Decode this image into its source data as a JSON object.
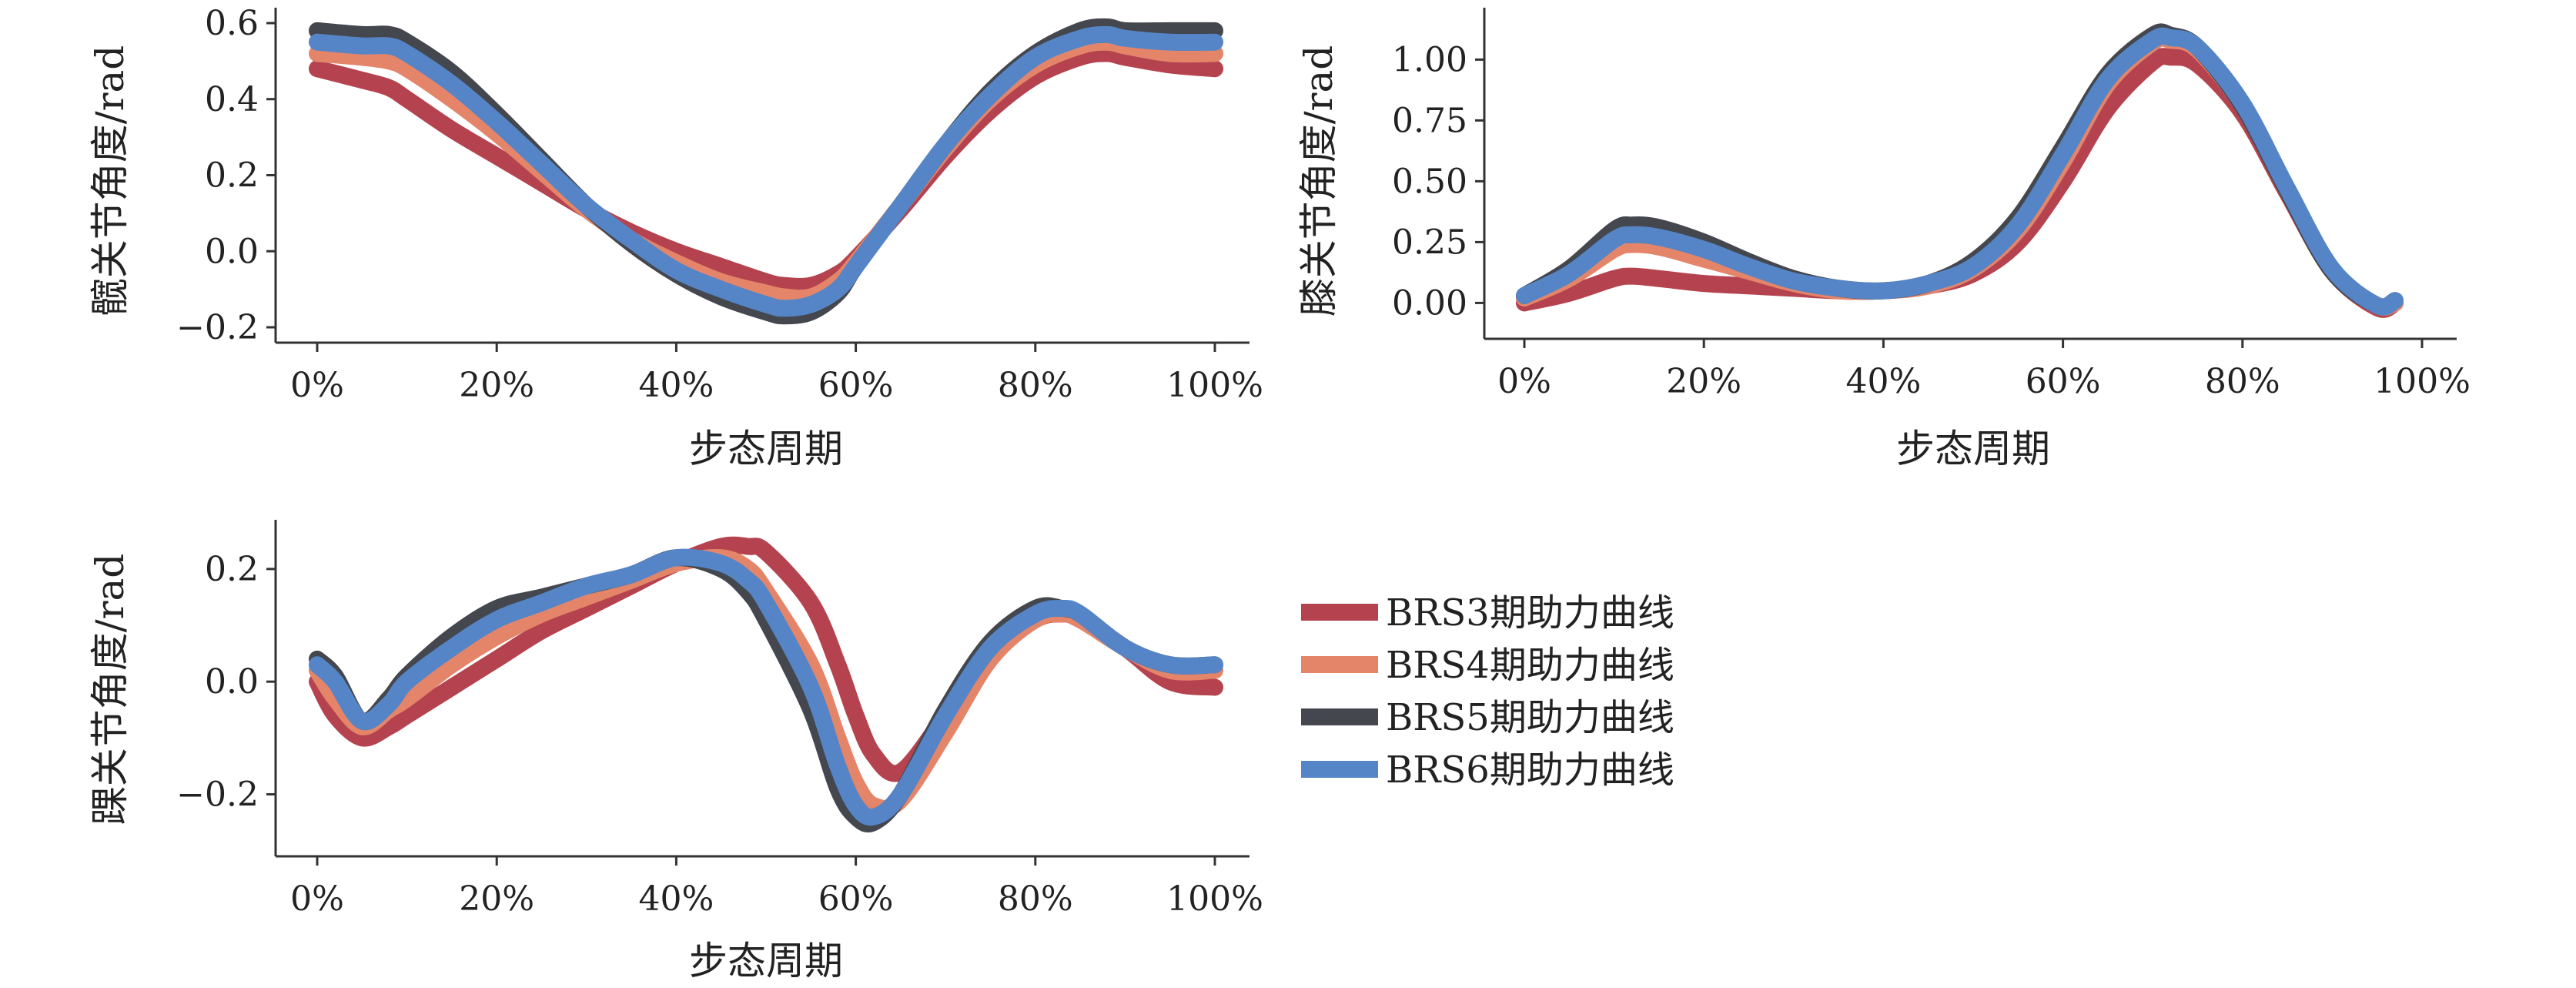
{
  "chart_data": [
    {
      "id": "hip",
      "type": "line",
      "xlabel": "步态周期",
      "ylabel": "髋关节角度/rad",
      "xlim": [
        0,
        100
      ],
      "ylim": [
        -0.2,
        0.6
      ],
      "xticks": [
        0,
        20,
        40,
        60,
        80,
        100
      ],
      "xtick_labels": [
        "0%",
        "20%",
        "40%",
        "60%",
        "80%",
        "100%"
      ],
      "yticks": [
        -0.2,
        0,
        0.2,
        0.4,
        0.6
      ],
      "ytick_labels": [
        "−0.2",
        "0.0",
        "0.2",
        "0.4",
        "0.6"
      ],
      "x": [
        0,
        5,
        8,
        10,
        15,
        20,
        25,
        30,
        35,
        40,
        45,
        50,
        52,
        55,
        58,
        60,
        65,
        70,
        75,
        80,
        85,
        88,
        90,
        95,
        100
      ],
      "series": [
        {
          "name": "BRS3期助力曲线",
          "color": "#b5434f",
          "values": [
            0.48,
            0.45,
            0.43,
            0.4,
            0.32,
            0.25,
            0.18,
            0.11,
            0.05,
            0.0,
            -0.04,
            -0.08,
            -0.09,
            -0.09,
            -0.06,
            -0.02,
            0.11,
            0.25,
            0.37,
            0.46,
            0.51,
            0.52,
            0.51,
            0.49,
            0.48
          ]
        },
        {
          "name": "BRS4期助力曲线",
          "color": "#e4856a",
          "values": [
            0.52,
            0.51,
            0.5,
            0.48,
            0.4,
            0.31,
            0.21,
            0.11,
            0.03,
            -0.03,
            -0.08,
            -0.11,
            -0.12,
            -0.12,
            -0.08,
            -0.03,
            0.12,
            0.27,
            0.4,
            0.49,
            0.54,
            0.55,
            0.54,
            0.52,
            0.52
          ]
        },
        {
          "name": "BRS5期助力曲线",
          "color": "#44474e",
          "values": [
            0.58,
            0.57,
            0.57,
            0.55,
            0.47,
            0.36,
            0.24,
            0.12,
            0.02,
            -0.06,
            -0.12,
            -0.16,
            -0.17,
            -0.16,
            -0.11,
            -0.04,
            0.12,
            0.28,
            0.42,
            0.52,
            0.58,
            0.59,
            0.58,
            0.58,
            0.58
          ]
        },
        {
          "name": "BRS6期助力曲线",
          "color": "#5585c6",
          "values": [
            0.55,
            0.54,
            0.54,
            0.52,
            0.44,
            0.34,
            0.23,
            0.12,
            0.03,
            -0.05,
            -0.1,
            -0.14,
            -0.15,
            -0.14,
            -0.1,
            -0.04,
            0.12,
            0.28,
            0.41,
            0.51,
            0.56,
            0.57,
            0.56,
            0.55,
            0.55
          ]
        }
      ]
    },
    {
      "id": "knee",
      "type": "line",
      "xlabel": "步态周期",
      "ylabel": "膝关节角度/rad",
      "xlim": [
        0,
        100
      ],
      "ylim": [
        -0.1,
        1.15
      ],
      "xticks": [
        0,
        20,
        40,
        60,
        80,
        100
      ],
      "xtick_labels": [
        "0%",
        "20%",
        "40%",
        "60%",
        "80%",
        "100%"
      ],
      "yticks": [
        0,
        0.25,
        0.5,
        0.75,
        1.0
      ],
      "ytick_labels": [
        "0.00",
        "0.25",
        "0.50",
        "0.75",
        "1.00"
      ],
      "x": [
        0,
        5,
        10,
        12,
        15,
        20,
        25,
        30,
        35,
        40,
        45,
        50,
        55,
        60,
        65,
        70,
        72,
        75,
        80,
        85,
        90,
        95,
        97
      ],
      "series": [
        {
          "name": "BRS3期助力曲线",
          "color": "#b5434f",
          "values": [
            0.0,
            0.04,
            0.1,
            0.11,
            0.1,
            0.08,
            0.07,
            0.06,
            0.05,
            0.05,
            0.07,
            0.12,
            0.25,
            0.5,
            0.8,
            0.99,
            1.01,
            0.98,
            0.78,
            0.45,
            0.13,
            -0.02,
            0.0
          ]
        },
        {
          "name": "BRS4期助力曲线",
          "color": "#e4856a",
          "values": [
            0.02,
            0.1,
            0.22,
            0.24,
            0.23,
            0.18,
            0.13,
            0.08,
            0.05,
            0.05,
            0.07,
            0.14,
            0.3,
            0.58,
            0.9,
            1.07,
            1.08,
            1.04,
            0.81,
            0.46,
            0.13,
            -0.01,
            0.0
          ]
        },
        {
          "name": "BRS5期助力曲线",
          "color": "#44474e",
          "values": [
            0.03,
            0.14,
            0.3,
            0.32,
            0.31,
            0.25,
            0.17,
            0.1,
            0.06,
            0.05,
            0.08,
            0.17,
            0.35,
            0.64,
            0.94,
            1.1,
            1.1,
            1.05,
            0.81,
            0.46,
            0.13,
            -0.01,
            0.01
          ]
        },
        {
          "name": "BRS6期助力曲线",
          "color": "#5585c6",
          "values": [
            0.03,
            0.12,
            0.26,
            0.28,
            0.27,
            0.22,
            0.15,
            0.09,
            0.06,
            0.05,
            0.08,
            0.15,
            0.32,
            0.61,
            0.92,
            1.08,
            1.09,
            1.05,
            0.82,
            0.47,
            0.14,
            -0.01,
            0.01
          ]
        }
      ]
    },
    {
      "id": "ankle",
      "type": "line",
      "xlabel": "步态周期",
      "ylabel": "踝关节角度/rad",
      "xlim": [
        0,
        100
      ],
      "ylim": [
        -0.28,
        0.26
      ],
      "xticks": [
        0,
        20,
        40,
        60,
        80,
        100
      ],
      "xtick_labels": [
        "0%",
        "20%",
        "40%",
        "60%",
        "80%",
        "100%"
      ],
      "yticks": [
        -0.2,
        0,
        0.2
      ],
      "ytick_labels": [
        "−0.2",
        "0.0",
        "0.2"
      ],
      "x": [
        0,
        2,
        5,
        8,
        10,
        15,
        20,
        25,
        30,
        35,
        40,
        45,
        48,
        50,
        55,
        58,
        60,
        62,
        65,
        70,
        75,
        80,
        83,
        85,
        90,
        95,
        100
      ],
      "series": [
        {
          "name": "BRS3期助力曲线",
          "color": "#b5434f",
          "values": [
            0.0,
            -0.06,
            -0.1,
            -0.08,
            -0.06,
            -0.01,
            0.04,
            0.09,
            0.13,
            0.17,
            0.21,
            0.24,
            0.24,
            0.23,
            0.14,
            0.03,
            -0.06,
            -0.13,
            -0.16,
            -0.06,
            0.05,
            0.11,
            0.12,
            0.11,
            0.06,
            0.0,
            -0.01
          ]
        },
        {
          "name": "BRS4期助力曲线",
          "color": "#e4856a",
          "values": [
            0.02,
            -0.03,
            -0.08,
            -0.05,
            -0.03,
            0.03,
            0.08,
            0.12,
            0.15,
            0.18,
            0.21,
            0.22,
            0.2,
            0.16,
            0.03,
            -0.1,
            -0.18,
            -0.22,
            -0.21,
            -0.09,
            0.04,
            0.11,
            0.12,
            0.11,
            0.06,
            0.02,
            0.02
          ]
        },
        {
          "name": "BRS5期助力曲线",
          "color": "#44474e",
          "values": [
            0.04,
            0.01,
            -0.07,
            -0.03,
            0.01,
            0.08,
            0.13,
            0.15,
            0.17,
            0.19,
            0.22,
            0.2,
            0.16,
            0.11,
            -0.05,
            -0.19,
            -0.24,
            -0.25,
            -0.2,
            -0.05,
            0.07,
            0.13,
            0.13,
            0.12,
            0.06,
            0.03,
            0.03
          ]
        },
        {
          "name": "BRS6期助力曲线",
          "color": "#5585c6",
          "values": [
            0.03,
            0.0,
            -0.07,
            -0.04,
            0.0,
            0.06,
            0.11,
            0.14,
            0.17,
            0.19,
            0.22,
            0.21,
            0.18,
            0.14,
            -0.01,
            -0.15,
            -0.22,
            -0.24,
            -0.2,
            -0.06,
            0.06,
            0.12,
            0.13,
            0.12,
            0.06,
            0.03,
            0.03
          ]
        }
      ]
    }
  ],
  "legend": {
    "placement": "right-of-bottom-chart",
    "items": [
      {
        "label": "BRS3期助力曲线",
        "color": "#b5434f"
      },
      {
        "label": "BRS4期助力曲线",
        "color": "#e4856a"
      },
      {
        "label": "BRS5期助力曲线",
        "color": "#44474e"
      },
      {
        "label": "BRS6期助力曲线",
        "color": "#5585c6"
      }
    ]
  }
}
